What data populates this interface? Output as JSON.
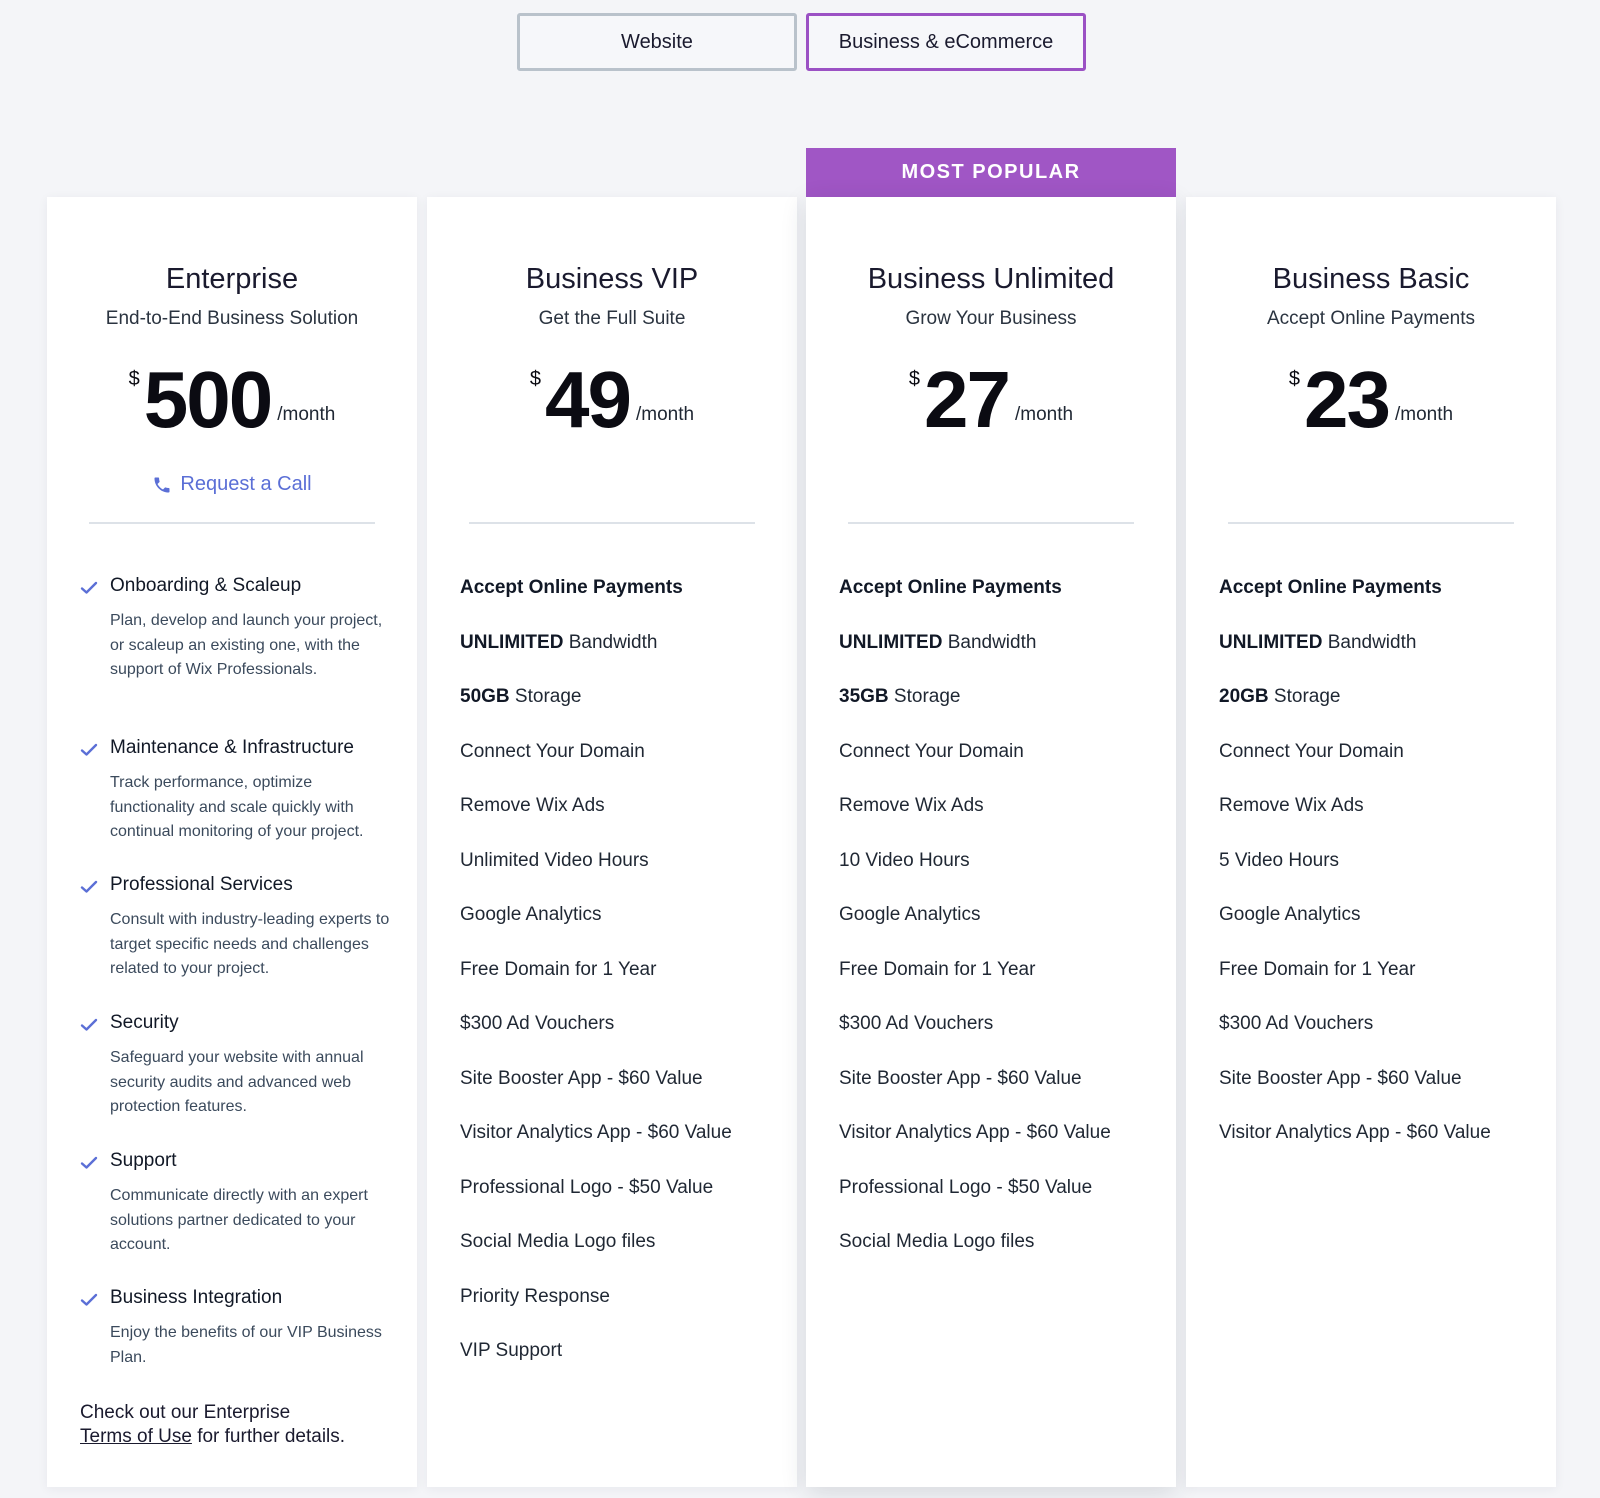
{
  "tabs": {
    "website": "Website",
    "business": "Business & eCommerce"
  },
  "popular_label": "MOST POPULAR",
  "colors": {
    "accent": "#a056c5",
    "link": "#5b6fd6",
    "check": "#5b6fd6"
  },
  "plans": [
    {
      "name": "Enterprise",
      "subtitle": "End-to-End Business Solution",
      "currency": "$",
      "price": "500",
      "period": "/month",
      "request_call": "Request a Call",
      "items": [
        {
          "title": "Onboarding & Scaleup",
          "desc": "Plan, develop and launch your project, or scaleup an existing one, with the support of Wix Professionals."
        },
        {
          "title": "Maintenance & Infrastructure",
          "desc": "Track performance, optimize functionality and scale quickly with continual monitoring of your project."
        },
        {
          "title": "Professional Services",
          "desc": "Consult with industry-leading experts to target specific needs and challenges related to your project."
        },
        {
          "title": "Security",
          "desc": "Safeguard your website with annual security audits and advanced web protection features."
        },
        {
          "title": "Support",
          "desc": "Communicate directly with an expert solutions partner dedicated to your account."
        },
        {
          "title": "Business Integration",
          "desc": "Enjoy the benefits of our VIP Business Plan."
        }
      ],
      "footer_text": "Check out our Enterprise",
      "footer_link": "Terms of Use",
      "footer_tail": "for further details."
    },
    {
      "name": "Business VIP",
      "subtitle": "Get the Full Suite",
      "currency": "$",
      "price": "49",
      "period": "/month",
      "features": [
        {
          "bold": "Accept Online Payments",
          "text": ""
        },
        {
          "bold": "UNLIMITED",
          "text": " Bandwidth"
        },
        {
          "bold": "50GB",
          "text": " Storage"
        },
        {
          "bold": "",
          "text": "Connect Your Domain"
        },
        {
          "bold": "",
          "text": "Remove Wix Ads"
        },
        {
          "bold": "",
          "text": "Unlimited Video Hours"
        },
        {
          "bold": "",
          "text": "Google Analytics"
        },
        {
          "bold": "",
          "text": "Free Domain for 1 Year"
        },
        {
          "bold": "",
          "text": "$300 Ad Vouchers"
        },
        {
          "bold": "",
          "text": "Site Booster App - $60 Value"
        },
        {
          "bold": "",
          "text": "Visitor Analytics App - $60 Value"
        },
        {
          "bold": "",
          "text": "Professional Logo - $50 Value"
        },
        {
          "bold": "",
          "text": "Social Media Logo files"
        },
        {
          "bold": "",
          "text": "Priority Response"
        },
        {
          "bold": "",
          "text": "VIP Support"
        }
      ]
    },
    {
      "name": "Business Unlimited",
      "subtitle": "Grow Your Business",
      "currency": "$",
      "price": "27",
      "period": "/month",
      "features": [
        {
          "bold": "Accept Online Payments",
          "text": ""
        },
        {
          "bold": "UNLIMITED",
          "text": " Bandwidth"
        },
        {
          "bold": "35GB",
          "text": " Storage"
        },
        {
          "bold": "",
          "text": "Connect Your Domain"
        },
        {
          "bold": "",
          "text": "Remove Wix Ads"
        },
        {
          "bold": "",
          "text": "10 Video Hours"
        },
        {
          "bold": "",
          "text": "Google Analytics"
        },
        {
          "bold": "",
          "text": "Free Domain for 1 Year"
        },
        {
          "bold": "",
          "text": "$300 Ad Vouchers"
        },
        {
          "bold": "",
          "text": "Site Booster App - $60 Value"
        },
        {
          "bold": "",
          "text": "Visitor Analytics App - $60 Value"
        },
        {
          "bold": "",
          "text": "Professional Logo - $50 Value"
        },
        {
          "bold": "",
          "text": "Social Media Logo files"
        }
      ]
    },
    {
      "name": "Business Basic",
      "subtitle": "Accept Online Payments",
      "currency": "$",
      "price": "23",
      "period": "/month",
      "features": [
        {
          "bold": "Accept Online Payments",
          "text": ""
        },
        {
          "bold": "UNLIMITED",
          "text": " Bandwidth"
        },
        {
          "bold": "20GB",
          "text": " Storage"
        },
        {
          "bold": "",
          "text": "Connect Your Domain"
        },
        {
          "bold": "",
          "text": "Remove Wix Ads"
        },
        {
          "bold": "",
          "text": "5 Video Hours"
        },
        {
          "bold": "",
          "text": "Google Analytics"
        },
        {
          "bold": "",
          "text": "Free Domain for 1 Year"
        },
        {
          "bold": "",
          "text": "$300 Ad Vouchers"
        },
        {
          "bold": "",
          "text": "Site Booster App - $60 Value"
        },
        {
          "bold": "",
          "text": "Visitor Analytics App - $60 Value"
        }
      ]
    }
  ]
}
